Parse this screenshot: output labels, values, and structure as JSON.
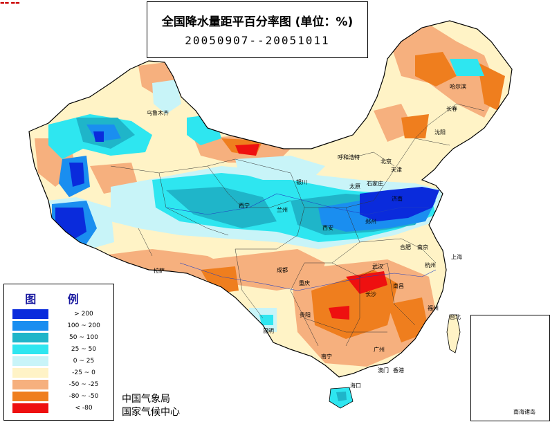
{
  "title": {
    "line1": "全国降水量距平百分率图 (单位：%)",
    "line2": "20050907--20051011"
  },
  "legend": {
    "title": "图 例",
    "items": [
      {
        "label": "> 200",
        "color": "#0a2bdc"
      },
      {
        "label": "100 ~ 200",
        "color": "#1a8ef0"
      },
      {
        "label": "50 ~ 100",
        "color": "#1fb5c9"
      },
      {
        "label": "25 ~ 50",
        "color": "#2ee6f0"
      },
      {
        "label": "0 ~ 25",
        "color": "#c8f4f8"
      },
      {
        "label": "-25 ~ 0",
        "color": "#fff3c6"
      },
      {
        "label": "-50 ~ -25",
        "color": "#f6b07e"
      },
      {
        "label": "-80 ~ -50",
        "color": "#ef7e1e"
      },
      {
        "label": "< -80",
        "color": "#ee1010"
      }
    ]
  },
  "agency": {
    "line1": "中国气象局",
    "line2": "国家气候中心"
  },
  "inset": {
    "label": "南海诸岛"
  },
  "cities": [
    {
      "name": "哈尔滨",
      "name_key": "harbin"
    },
    {
      "name": "长春",
      "name_key": "changchun"
    },
    {
      "name": "沈阳",
      "name_key": "shenyang"
    },
    {
      "name": "呼和浩特",
      "name_key": "hohhot"
    },
    {
      "name": "北京",
      "name_key": "beijing"
    },
    {
      "name": "天津",
      "name_key": "tianjin"
    },
    {
      "name": "太原",
      "name_key": "taiyuan"
    },
    {
      "name": "石家庄",
      "name_key": "shijiazhuang"
    },
    {
      "name": "济南",
      "name_key": "jinan"
    },
    {
      "name": "银川",
      "name_key": "yinchuan"
    },
    {
      "name": "西宁",
      "name_key": "xining"
    },
    {
      "name": "兰州",
      "name_key": "lanzhou"
    },
    {
      "name": "郑州",
      "name_key": "zhengzhou"
    },
    {
      "name": "西安",
      "name_key": "xian"
    },
    {
      "name": "合肥",
      "name_key": "hefei"
    },
    {
      "name": "南京",
      "name_key": "nanjing"
    },
    {
      "name": "上海",
      "name_key": "shanghai"
    },
    {
      "name": "杭州",
      "name_key": "hangzhou"
    },
    {
      "name": "武汉",
      "name_key": "wuhan"
    },
    {
      "name": "南昌",
      "name_key": "nanchang"
    },
    {
      "name": "长沙",
      "name_key": "changsha"
    },
    {
      "name": "重庆",
      "name_key": "chongqing"
    },
    {
      "name": "成都",
      "name_key": "chengdu"
    },
    {
      "name": "贵阳",
      "name_key": "guiyang"
    },
    {
      "name": "昆明",
      "name_key": "kunming"
    },
    {
      "name": "南宁",
      "name_key": "nanning"
    },
    {
      "name": "广州",
      "name_key": "guangzhou"
    },
    {
      "name": "福州",
      "name_key": "fuzhou"
    },
    {
      "name": "台北",
      "name_key": "taipei"
    },
    {
      "name": "海口",
      "name_key": "haikou"
    },
    {
      "name": "拉萨",
      "name_key": "lhasa"
    },
    {
      "name": "乌鲁木齐",
      "name_key": "urumqi"
    },
    {
      "name": "香港",
      "name_key": "hongkong"
    },
    {
      "name": "澳门",
      "name_key": "macau"
    }
  ]
}
